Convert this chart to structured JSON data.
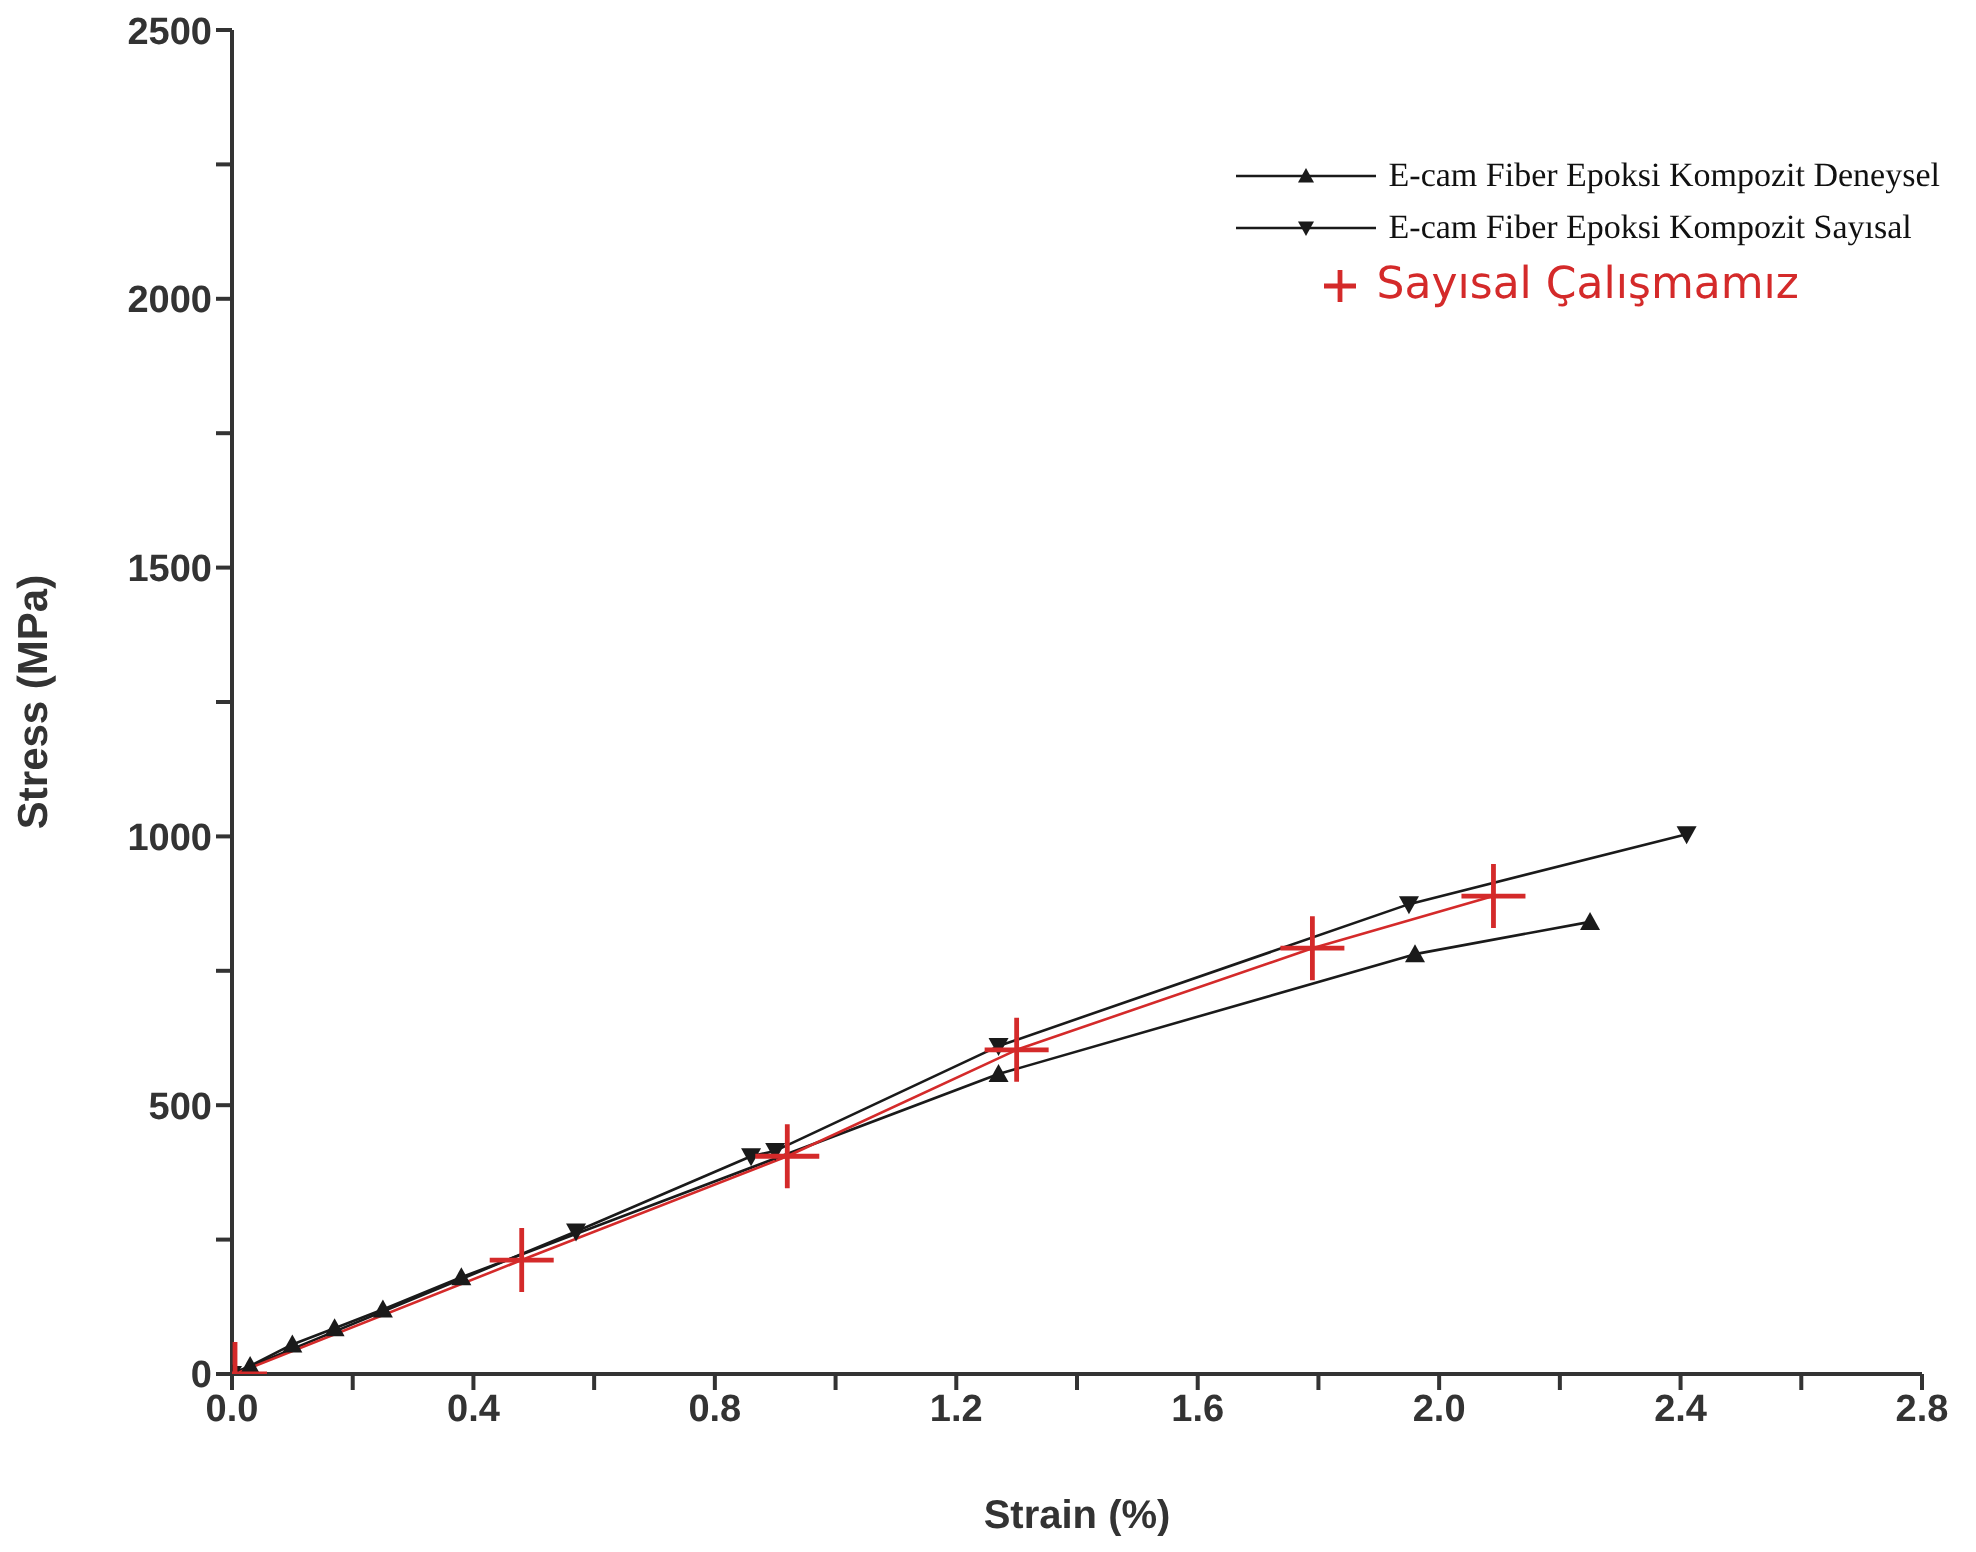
{
  "chart_data": {
    "type": "line",
    "xlabel": "Strain (%)",
    "ylabel": "Stress (MPa)",
    "xlim": [
      0,
      2.8
    ],
    "xticks": [
      {
        "value": 0,
        "label": "0.0"
      },
      {
        "value": 0.2,
        "label": null
      },
      {
        "value": 0.4,
        "label": "0.4"
      },
      {
        "value": 0.6,
        "label": null
      },
      {
        "value": 0.8,
        "label": "0.8"
      },
      {
        "value": 1.0,
        "label": null
      },
      {
        "value": 1.2,
        "label": "1.2"
      },
      {
        "value": 1.4,
        "label": null
      },
      {
        "value": 1.6,
        "label": "1.6"
      },
      {
        "value": 1.8,
        "label": null
      },
      {
        "value": 2.0,
        "label": "2.0"
      },
      {
        "value": 2.2,
        "label": null
      },
      {
        "value": 2.4,
        "label": "2.4"
      },
      {
        "value": 2.6,
        "label": null
      },
      {
        "value": 2.8,
        "label": "2.8"
      }
    ],
    "ylim": [
      0,
      2500
    ],
    "yticks": [
      0,
      {
        "value": 250,
        "label": null
      },
      500,
      {
        "value": 750,
        "label": null
      },
      1000,
      {
        "value": 1250,
        "label": null
      },
      1500,
      {
        "value": 1750,
        "label": null
      },
      2000,
      {
        "value": 2250,
        "label": null
      },
      2500
    ],
    "grid": false,
    "legend": "top right",
    "series": [
      {
        "name": "E-cam Fiber Epoksi Kompozit Deneysel",
        "color": "#1a1a1a",
        "marker": "triangle",
        "x": [
          0,
          0.03,
          0.1,
          0.17,
          0.25,
          0.38,
          1.27,
          1.96,
          2.25
        ],
        "values": [
          0,
          15,
          55,
          85,
          120,
          180,
          558,
          781,
          841
        ]
      },
      {
        "name": "E-cam Fiber Epoksi Kompozit Sayısal",
        "color": "#1a1a1a",
        "marker": "triangle-down",
        "x": [
          0,
          0.57,
          0.86,
          0.9,
          1.27,
          1.95,
          2.41
        ],
        "values": [
          0,
          265,
          405,
          415,
          610,
          874,
          1004
        ]
      },
      {
        "name": "Sayısal Çalışmamız",
        "color": "#d42a2a",
        "marker": "cross",
        "x": [
          0.005,
          0.48,
          0.92,
          1.3,
          1.79,
          2.09
        ],
        "values": [
          0,
          212,
          405,
          603,
          792,
          889
        ]
      }
    ]
  }
}
